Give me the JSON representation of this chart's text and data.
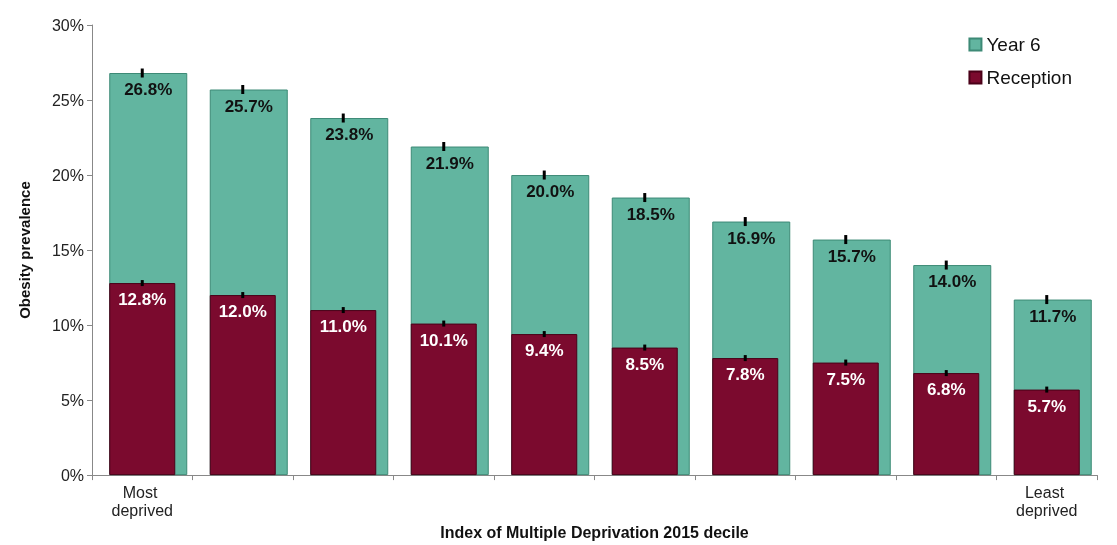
{
  "chart_data": {
    "type": "bar",
    "xlabel": "Index of Multiple Deprivation 2015 decile",
    "ylabel": "Obesity prevalence",
    "categories": [
      "Most deprived",
      null,
      null,
      null,
      null,
      null,
      null,
      null,
      null,
      "Least deprived"
    ],
    "series": [
      {
        "name": "Year 6",
        "color": "#62b5a0",
        "values": [
          26.8,
          25.7,
          23.8,
          21.9,
          20.0,
          18.5,
          16.9,
          15.7,
          14.0,
          11.7
        ],
        "errors": [
          0.3,
          0.3,
          0.3,
          0.3,
          0.3,
          0.3,
          0.3,
          0.3,
          0.3,
          0.3
        ],
        "value_labels": [
          "26.8%",
          "25.7%",
          "23.8%",
          "21.9%",
          "20.0%",
          "18.5%",
          "16.9%",
          "15.7%",
          "14.0%",
          "11.7%"
        ]
      },
      {
        "name": "Reception",
        "color": "#7b0a2e",
        "values": [
          12.8,
          12.0,
          11.0,
          10.1,
          9.4,
          8.5,
          7.8,
          7.5,
          6.8,
          5.7
        ],
        "errors": [
          0.2,
          0.2,
          0.2,
          0.2,
          0.2,
          0.2,
          0.2,
          0.2,
          0.2,
          0.2
        ],
        "value_labels": [
          "12.8%",
          "12.0%",
          "11.0%",
          "10.1%",
          "9.4%",
          "8.5%",
          "7.8%",
          "7.5%",
          "6.8%",
          "5.7%"
        ]
      }
    ],
    "ylim": [
      0,
      30
    ],
    "yticks": [
      {
        "value": 0,
        "label": "0%"
      },
      {
        "value": 5,
        "label": "5%"
      },
      {
        "value": 10,
        "label": "10%"
      },
      {
        "value": 15,
        "label": "15%"
      },
      {
        "value": 20,
        "label": "20%"
      },
      {
        "value": 25,
        "label": "25%"
      },
      {
        "value": 30,
        "label": "30%"
      }
    ],
    "grid": false,
    "legend": "top right"
  }
}
